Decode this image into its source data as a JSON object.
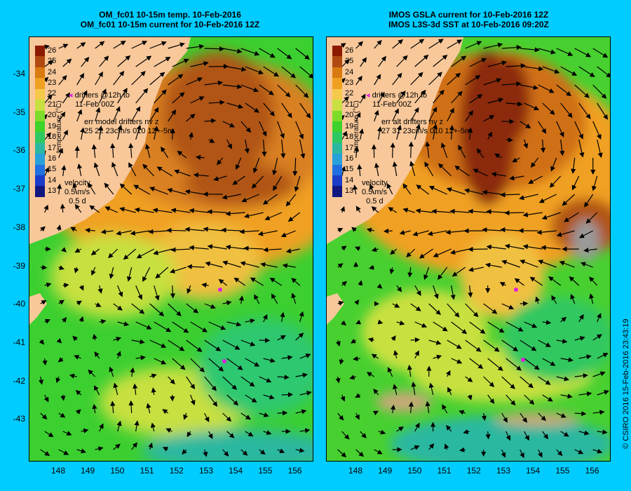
{
  "left_panel": {
    "title_line1": "OM_fc01 10-15m temp. 10-Feb-2016",
    "title_line2": "OM_fc01 10-15m current for 10-Feb-2016 12Z",
    "drifters_line1": "drifters @12h to",
    "drifters_line2": "11-Feb 00Z",
    "err_line1": "err model drifters nv z",
    "err_line2": "25 22 23cm/s 010 12+-5m"
  },
  "right_panel": {
    "title_line1": "IMOS GSLA current for 10-Feb-2016 12Z",
    "title_line2": "IMOS L3S-3d SST at 10-Feb-2016 09:20Z",
    "drifters_line1": "drifters @12h to",
    "drifters_line2": "11-Feb 00Z",
    "err_line1": "err alt drifters nv z",
    "err_line2": "27 31 23cm/s 010 12+-5m"
  },
  "velocity_legend": {
    "label": "velocity",
    "speed": "0.5 m/s",
    "duration": "0.5 d"
  },
  "colorbar": {
    "title": "temperature (°C)",
    "ticks": [
      "26",
      "25",
      "24",
      "23",
      "22",
      "21",
      "20",
      "19",
      "18",
      "17",
      "16",
      "15",
      "14",
      "13"
    ],
    "colors": [
      "#8b1a00",
      "#b04a10",
      "#d97a10",
      "#f0a020",
      "#f6c94a",
      "#c8e040",
      "#7ddc2a",
      "#3ed22a",
      "#2ec860",
      "#2cb8a0",
      "#28a0d8",
      "#2070e0",
      "#1a3cc8",
      "#101880"
    ]
  },
  "axes": {
    "y_ticks": [
      "-34",
      "-35",
      "-36",
      "-37",
      "-38",
      "-39",
      "-40",
      "-41",
      "-42",
      "-43"
    ],
    "x_ticks": [
      "148",
      "149",
      "150",
      "151",
      "152",
      "153",
      "154",
      "155",
      "156"
    ]
  },
  "credit": "© CSIRO 2016   15-Feb-2016 23:43:19",
  "colors": {
    "background": "#00ccff",
    "land": "#f8c89a",
    "drifter": "#e020e0"
  }
}
